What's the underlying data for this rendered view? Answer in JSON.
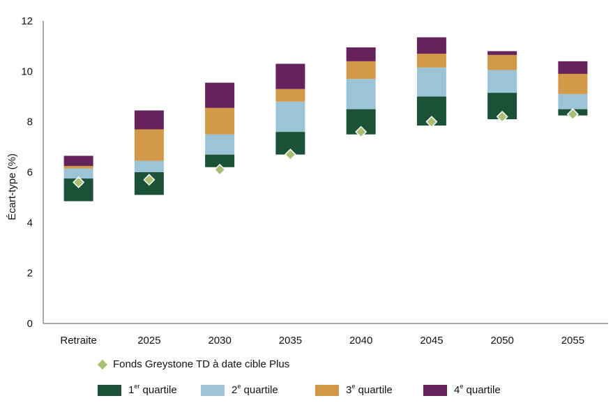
{
  "chart_data": {
    "type": "bar",
    "subtype": "stacked-floating-with-markers",
    "ylabel": "Écart-type (%)",
    "xlabel": "",
    "ylim": [
      0,
      12
    ],
    "yticks": [
      0,
      2,
      4,
      6,
      8,
      10,
      12
    ],
    "grid": false,
    "legend_position": "bottom",
    "categories": [
      "Retraite",
      "2025",
      "2030",
      "2035",
      "2040",
      "2045",
      "2050",
      "2055"
    ],
    "bar_bottom": [
      4.85,
      5.1,
      6.2,
      6.7,
      7.5,
      7.85,
      8.1,
      8.25
    ],
    "series": [
      {
        "name": "1er quartile",
        "name_base": "1",
        "name_sup": "er",
        "name_rest": " quartile",
        "color": "#1b5137",
        "values": [
          0.9,
          0.9,
          0.5,
          0.9,
          1.0,
          1.15,
          1.05,
          0.25
        ]
      },
      {
        "name": "2e quartile",
        "name_base": "2",
        "name_sup": "e",
        "name_rest": " quartile",
        "color": "#9dc3d6",
        "values": [
          0.4,
          0.45,
          0.8,
          1.2,
          1.2,
          1.15,
          0.9,
          0.6
        ]
      },
      {
        "name": "3e quartile",
        "name_base": "3",
        "name_sup": "e",
        "name_rest": " quartile",
        "color": "#d29a48",
        "values": [
          0.1,
          1.25,
          1.05,
          0.5,
          0.7,
          0.55,
          0.6,
          0.8
        ]
      },
      {
        "name": "4e quartile",
        "name_base": "4",
        "name_sup": "e",
        "name_rest": " quartile",
        "color": "#66225a",
        "values": [
          0.4,
          0.75,
          1.0,
          1.0,
          0.55,
          0.65,
          0.15,
          0.5
        ]
      }
    ],
    "markers": {
      "name": "Fonds Greystone TD à date cible Plus",
      "color": "#a9bf73",
      "values": [
        5.6,
        5.7,
        6.1,
        6.7,
        7.6,
        8.0,
        8.2,
        8.3
      ]
    }
  }
}
